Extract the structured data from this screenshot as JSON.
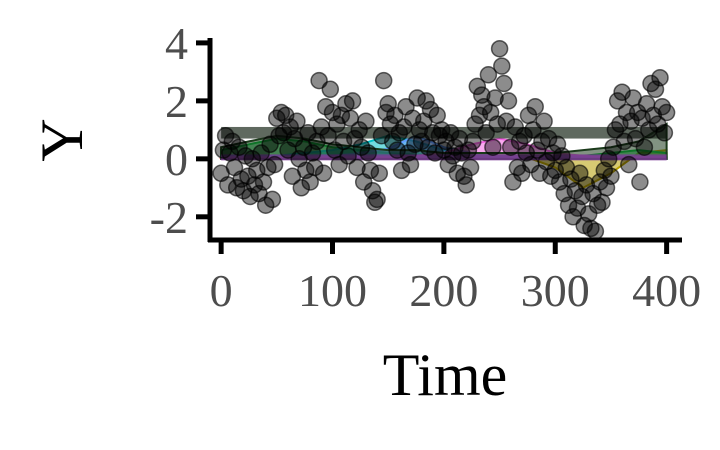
{
  "chart_data": {
    "type": "scatter",
    "title": "",
    "xlabel": "Time",
    "ylabel": "Y",
    "xlim": [
      -10,
      412
    ],
    "ylim": [
      -2.8,
      4.1
    ],
    "x_ticks": [
      0,
      100,
      200,
      300,
      400
    ],
    "y_ticks": [
      -2,
      0,
      2,
      4
    ],
    "x_tick_labels": [
      "0",
      "100",
      "200",
      "300",
      "400"
    ],
    "y_tick_labels": [
      "-2",
      "0",
      "2",
      "4"
    ],
    "grid": false,
    "legend": "none",
    "points_color": "#000000",
    "points_opacity": 0.45,
    "points": [
      [
        0,
        -0.5
      ],
      [
        2,
        0.3
      ],
      [
        4,
        0.8
      ],
      [
        6,
        -0.9
      ],
      [
        8,
        0.2
      ],
      [
        10,
        0.6
      ],
      [
        12,
        -0.3
      ],
      [
        14,
        -1.0
      ],
      [
        16,
        0.4
      ],
      [
        18,
        -0.7
      ],
      [
        20,
        -1.1
      ],
      [
        22,
        0.1
      ],
      [
        24,
        -0.6
      ],
      [
        26,
        -1.3
      ],
      [
        28,
        0.0
      ],
      [
        30,
        -0.9
      ],
      [
        32,
        -0.4
      ],
      [
        34,
        -1.2
      ],
      [
        36,
        0.2
      ],
      [
        38,
        -0.8
      ],
      [
        40,
        -1.6
      ],
      [
        42,
        -0.3
      ],
      [
        44,
        0.5
      ],
      [
        46,
        -1.4
      ],
      [
        48,
        -0.2
      ],
      [
        50,
        1.4
      ],
      [
        52,
        0.8
      ],
      [
        54,
        1.6
      ],
      [
        56,
        0.9
      ],
      [
        58,
        1.5
      ],
      [
        60,
        0.3
      ],
      [
        62,
        1.1
      ],
      [
        64,
        -0.6
      ],
      [
        66,
        0.7
      ],
      [
        68,
        1.3
      ],
      [
        70,
        0.0
      ],
      [
        72,
        -1.0
      ],
      [
        74,
        0.4
      ],
      [
        76,
        -0.4
      ],
      [
        78,
        0.9
      ],
      [
        80,
        -0.8
      ],
      [
        82,
        0.2
      ],
      [
        84,
        -0.3
      ],
      [
        86,
        0.6
      ],
      [
        88,
        2.7
      ],
      [
        90,
        1.1
      ],
      [
        92,
        -0.5
      ],
      [
        94,
        1.8
      ],
      [
        96,
        0.8
      ],
      [
        98,
        2.4
      ],
      [
        100,
        1.6
      ],
      [
        102,
        0.3
      ],
      [
        104,
        1.2
      ],
      [
        106,
        -0.2
      ],
      [
        108,
        1.5
      ],
      [
        110,
        0.6
      ],
      [
        112,
        1.9
      ],
      [
        114,
        0.1
      ],
      [
        116,
        1.4
      ],
      [
        118,
        2.0
      ],
      [
        120,
        0.7
      ],
      [
        122,
        -0.3
      ],
      [
        124,
        1.0
      ],
      [
        126,
        0.4
      ],
      [
        128,
        -0.8
      ],
      [
        130,
        1.3
      ],
      [
        132,
        0.2
      ],
      [
        134,
        -0.4
      ],
      [
        136,
        -1.1
      ],
      [
        138,
        -1.5
      ],
      [
        140,
        -1.4
      ],
      [
        142,
        -0.5
      ],
      [
        144,
        0.8
      ],
      [
        146,
        2.7
      ],
      [
        148,
        1.6
      ],
      [
        150,
        1.9
      ],
      [
        152,
        1.2
      ],
      [
        154,
        0.6
      ],
      [
        156,
        1.5
      ],
      [
        158,
        0.3
      ],
      [
        160,
        0.9
      ],
      [
        162,
        -0.4
      ],
      [
        164,
        1.1
      ],
      [
        166,
        1.8
      ],
      [
        168,
        0.2
      ],
      [
        170,
        -0.2
      ],
      [
        172,
        1.4
      ],
      [
        174,
        0.5
      ],
      [
        176,
        2.1
      ],
      [
        178,
        1.0
      ],
      [
        180,
        0.6
      ],
      [
        182,
        1.3
      ],
      [
        184,
        2.0
      ],
      [
        186,
        0.4
      ],
      [
        188,
        1.7
      ],
      [
        190,
        0.9
      ],
      [
        192,
        0.2
      ],
      [
        194,
        1.5
      ],
      [
        196,
        0.8
      ],
      [
        198,
        1.0
      ],
      [
        200,
        0.3
      ],
      [
        202,
        0.6
      ],
      [
        204,
        -0.2
      ],
      [
        206,
        0.9
      ],
      [
        208,
        0.1
      ],
      [
        210,
        0.4
      ],
      [
        212,
        -0.5
      ],
      [
        214,
        0.7
      ],
      [
        216,
        0.2
      ],
      [
        218,
        -0.6
      ],
      [
        220,
        -0.9
      ],
      [
        222,
        0.3
      ],
      [
        224,
        -0.3
      ],
      [
        226,
        0.6
      ],
      [
        228,
        1.2
      ],
      [
        230,
        2.5
      ],
      [
        232,
        1.5
      ],
      [
        234,
        2.2
      ],
      [
        236,
        1.8
      ],
      [
        238,
        0.9
      ],
      [
        240,
        2.9
      ],
      [
        242,
        1.6
      ],
      [
        244,
        0.4
      ],
      [
        246,
        2.1
      ],
      [
        248,
        1.2
      ],
      [
        250,
        3.8
      ],
      [
        252,
        3.2
      ],
      [
        254,
        2.6
      ],
      [
        256,
        1.3
      ],
      [
        258,
        2.0
      ],
      [
        260,
        0.4
      ],
      [
        262,
        -0.8
      ],
      [
        264,
        1.1
      ],
      [
        266,
        -0.3
      ],
      [
        268,
        0.6
      ],
      [
        270,
        -0.5
      ],
      [
        272,
        0.8
      ],
      [
        274,
        0.2
      ],
      [
        276,
        1.5
      ],
      [
        278,
        -0.2
      ],
      [
        280,
        1.0
      ],
      [
        282,
        1.8
      ],
      [
        284,
        0.3
      ],
      [
        286,
        -0.5
      ],
      [
        288,
        0.6
      ],
      [
        290,
        1.3
      ],
      [
        292,
        -0.1
      ],
      [
        294,
        0.7
      ],
      [
        296,
        -0.6
      ],
      [
        298,
        0.2
      ],
      [
        300,
        -0.4
      ],
      [
        302,
        0.5
      ],
      [
        304,
        -0.8
      ],
      [
        306,
        0.1
      ],
      [
        308,
        -1.2
      ],
      [
        310,
        -0.3
      ],
      [
        312,
        -1.6
      ],
      [
        314,
        -0.7
      ],
      [
        316,
        -2.0
      ],
      [
        318,
        -1.1
      ],
      [
        320,
        -1.7
      ],
      [
        322,
        -0.5
      ],
      [
        324,
        -1.3
      ],
      [
        326,
        -2.3
      ],
      [
        328,
        -0.9
      ],
      [
        330,
        -1.9
      ],
      [
        332,
        -2.4
      ],
      [
        334,
        -1.2
      ],
      [
        336,
        -2.5
      ],
      [
        338,
        -1.6
      ],
      [
        340,
        -0.8
      ],
      [
        342,
        -1.5
      ],
      [
        344,
        -0.4
      ],
      [
        346,
        -1.0
      ],
      [
        348,
        0.0
      ],
      [
        350,
        -0.6
      ],
      [
        352,
        0.4
      ],
      [
        354,
        1.0
      ],
      [
        356,
        2.0
      ],
      [
        358,
        1.2
      ],
      [
        360,
        2.3
      ],
      [
        362,
        0.6
      ],
      [
        364,
        1.6
      ],
      [
        366,
        -0.2
      ],
      [
        368,
        1.3
      ],
      [
        370,
        2.1
      ],
      [
        372,
        0.7
      ],
      [
        374,
        1.6
      ],
      [
        376,
        -0.8
      ],
      [
        378,
        1.4
      ],
      [
        380,
        0.4
      ],
      [
        382,
        1.9
      ],
      [
        384,
        1.0
      ],
      [
        386,
        2.6
      ],
      [
        388,
        1.5
      ],
      [
        390,
        2.4
      ],
      [
        392,
        1.2
      ],
      [
        394,
        2.8
      ],
      [
        396,
        1.8
      ],
      [
        398,
        0.9
      ],
      [
        400,
        1.6
      ]
    ],
    "bands": [
      {
        "name": "",
        "color": "#f8766d",
        "values": [
          [
            0,
            0
          ],
          [
            25,
            0.05
          ],
          [
            50,
            0.05
          ],
          [
            75,
            0.02
          ],
          [
            100,
            0.02
          ],
          [
            125,
            0.05
          ],
          [
            150,
            0.1
          ],
          [
            175,
            0.1
          ],
          [
            200,
            0.05
          ],
          [
            225,
            0.05
          ],
          [
            250,
            0.1
          ],
          [
            275,
            0.1
          ],
          [
            300,
            0.05
          ],
          [
            325,
            0.05
          ],
          [
            350,
            0.05
          ],
          [
            375,
            0.05
          ],
          [
            400,
            0.05
          ]
        ]
      },
      {
        "name": "",
        "color": "#b79f00",
        "values": [
          [
            0,
            0.05
          ],
          [
            25,
            0.05
          ],
          [
            50,
            0.05
          ],
          [
            75,
            0.02
          ],
          [
            100,
            0.02
          ],
          [
            125,
            0.05
          ],
          [
            150,
            0.05
          ],
          [
            175,
            0.05
          ],
          [
            200,
            0.05
          ],
          [
            225,
            0.05
          ],
          [
            250,
            0.05
          ],
          [
            275,
            0.05
          ],
          [
            300,
            -0.3
          ],
          [
            325,
            -1.0
          ],
          [
            350,
            -0.5
          ],
          [
            375,
            0.2
          ],
          [
            400,
            0.3
          ]
        ]
      },
      {
        "name": "",
        "color": "#00ba38",
        "values": [
          [
            0,
            0.3
          ],
          [
            25,
            0.5
          ],
          [
            50,
            0.7
          ],
          [
            75,
            0.6
          ],
          [
            100,
            0.4
          ],
          [
            125,
            0.3
          ],
          [
            150,
            0.2
          ],
          [
            175,
            0.15
          ],
          [
            200,
            0.1
          ],
          [
            225,
            0.1
          ],
          [
            250,
            0.1
          ],
          [
            275,
            0.1
          ],
          [
            300,
            0.1
          ],
          [
            325,
            0.1
          ],
          [
            350,
            0.2
          ],
          [
            375,
            0.3
          ],
          [
            400,
            0.2
          ]
        ]
      },
      {
        "name": "",
        "color": "#00bfc4",
        "values": [
          [
            0,
            0.1
          ],
          [
            25,
            0.1
          ],
          [
            50,
            0.1
          ],
          [
            75,
            0.2
          ],
          [
            100,
            0.3
          ],
          [
            125,
            0.5
          ],
          [
            150,
            0.8
          ],
          [
            175,
            0.6
          ],
          [
            200,
            0.3
          ],
          [
            225,
            0.1
          ],
          [
            250,
            0.05
          ],
          [
            275,
            0.05
          ],
          [
            300,
            0.05
          ],
          [
            325,
            0.05
          ],
          [
            350,
            0.05
          ],
          [
            375,
            0.05
          ],
          [
            400,
            0.05
          ]
        ]
      },
      {
        "name": "",
        "color": "#619cff",
        "values": [
          [
            0,
            0.05
          ],
          [
            25,
            0.05
          ],
          [
            50,
            0.05
          ],
          [
            75,
            0.05
          ],
          [
            100,
            0.1
          ],
          [
            125,
            0.2
          ],
          [
            150,
            0.35
          ],
          [
            175,
            0.8
          ],
          [
            200,
            0.4
          ],
          [
            225,
            0.2
          ],
          [
            250,
            0.1
          ],
          [
            275,
            0.05
          ],
          [
            300,
            0.05
          ],
          [
            325,
            0.05
          ],
          [
            350,
            0.05
          ],
          [
            375,
            0.05
          ],
          [
            400,
            0.05
          ]
        ]
      },
      {
        "name": "",
        "color": "#f564e3",
        "values": [
          [
            0,
            0.05
          ],
          [
            25,
            0.05
          ],
          [
            50,
            0.05
          ],
          [
            75,
            0.05
          ],
          [
            100,
            0.05
          ],
          [
            125,
            0.05
          ],
          [
            150,
            0.05
          ],
          [
            175,
            0.1
          ],
          [
            200,
            0.2
          ],
          [
            225,
            0.5
          ],
          [
            250,
            0.7
          ],
          [
            275,
            0.5
          ],
          [
            300,
            0.2
          ],
          [
            325,
            0.1
          ],
          [
            350,
            0.05
          ],
          [
            375,
            0.05
          ],
          [
            400,
            0.05
          ]
        ]
      },
      {
        "name": "",
        "color": "#1b3a1b",
        "values": [
          [
            0,
            0.4
          ],
          [
            25,
            0.6
          ],
          [
            50,
            0.8
          ],
          [
            75,
            0.7
          ],
          [
            100,
            0.5
          ],
          [
            125,
            0.4
          ],
          [
            150,
            0.3
          ],
          [
            175,
            0.3
          ],
          [
            200,
            0.2
          ],
          [
            225,
            0.2
          ],
          [
            250,
            0.2
          ],
          [
            275,
            0.2
          ],
          [
            300,
            0.2
          ],
          [
            325,
            0.3
          ],
          [
            350,
            0.4
          ],
          [
            375,
            0.6
          ],
          [
            400,
            1.2
          ]
        ]
      }
    ]
  }
}
